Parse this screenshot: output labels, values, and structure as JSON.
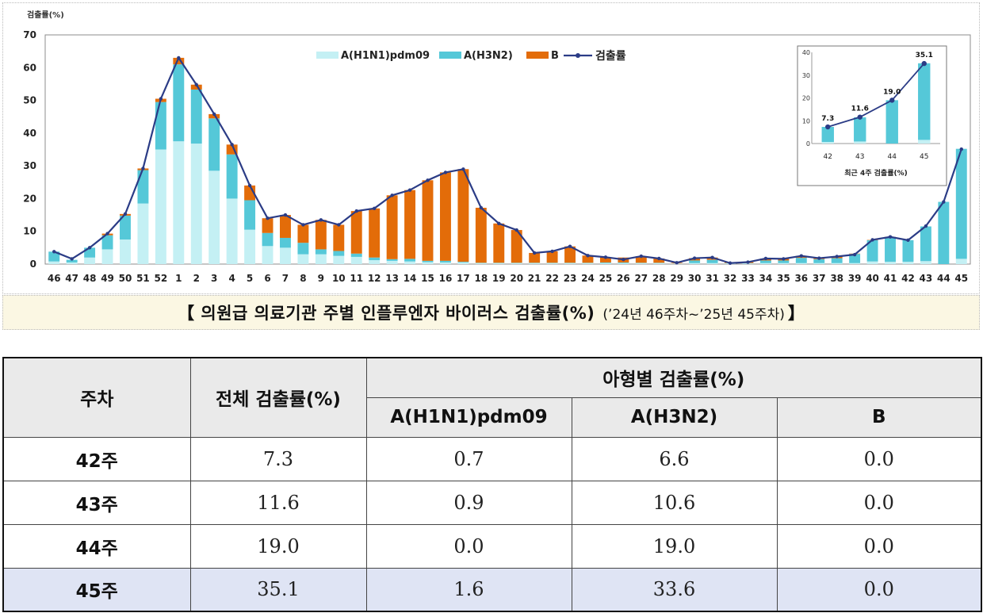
{
  "chart_data": {
    "type": "bar",
    "ylabel": "검출률(%)",
    "ylim": [
      0,
      70
    ],
    "yticks": [
      0,
      10,
      20,
      30,
      40,
      50,
      60,
      70
    ],
    "categories": [
      "46",
      "47",
      "48",
      "49",
      "50",
      "51",
      "52",
      "1",
      "2",
      "3",
      "4",
      "5",
      "6",
      "7",
      "8",
      "9",
      "10",
      "11",
      "12",
      "13",
      "14",
      "15",
      "16",
      "17",
      "18",
      "19",
      "20",
      "21",
      "22",
      "23",
      "24",
      "25",
      "26",
      "27",
      "28",
      "29",
      "30",
      "31",
      "32",
      "33",
      "34",
      "35",
      "36",
      "37",
      "38",
      "39",
      "40",
      "41",
      "42",
      "43",
      "44",
      "45"
    ],
    "series": [
      {
        "name": "A(H1N1)pdm09",
        "color": "#c4f0f4",
        "values": [
          0.8,
          0.5,
          2.0,
          4.5,
          7.5,
          18.5,
          35.0,
          37.5,
          36.8,
          28.5,
          20.0,
          10.5,
          5.5,
          5.0,
          3.0,
          3.0,
          2.5,
          2.2,
          1.2,
          1.0,
          0.8,
          0.6,
          0.5,
          0.5,
          0.3,
          0.3,
          0.3,
          0.3,
          0.3,
          0.3,
          0.3,
          0.3,
          0.3,
          0.3,
          0.3,
          0.2,
          0.3,
          0.3,
          0.2,
          0.2,
          0.3,
          0.3,
          0.3,
          0.3,
          0.3,
          0.3,
          0.8,
          0.7,
          0.7,
          0.9,
          0.0,
          1.6
        ]
      },
      {
        "name": "A(H3N2)",
        "color": "#55c8d8",
        "values": [
          3.0,
          0.8,
          3.0,
          4.3,
          7.3,
          10.2,
          14.5,
          23.5,
          16.5,
          16.0,
          13.5,
          9.0,
          4.0,
          3.0,
          3.5,
          1.5,
          1.5,
          1.0,
          0.8,
          0.5,
          0.8,
          0.4,
          0.5,
          0.2,
          0.1,
          0.1,
          0.1,
          0.1,
          0.1,
          0.1,
          0.1,
          0.2,
          0.2,
          0.1,
          0.1,
          0.0,
          0.8,
          1.0,
          0.1,
          0.1,
          0.8,
          0.8,
          1.6,
          1.2,
          1.5,
          2.8,
          6.5,
          7.5,
          6.6,
          10.6,
          19.0,
          33.6
        ]
      },
      {
        "name": "B",
        "color": "#e36c09",
        "values": [
          0.0,
          0.0,
          0.0,
          0.5,
          0.5,
          0.5,
          1.0,
          2.0,
          1.5,
          1.3,
          3.0,
          4.5,
          4.5,
          7.0,
          5.5,
          9.0,
          8.0,
          13.0,
          15.0,
          19.5,
          21.0,
          24.6,
          27.0,
          28.3,
          16.8,
          12.0,
          10.0,
          3.0,
          3.5,
          5.0,
          2.2,
          1.6,
          1.5,
          2.0,
          1.3,
          0.2,
          0.7,
          0.7,
          0.3,
          0.3,
          0.6,
          0.5,
          0.6,
          0.3,
          0.5,
          0.1,
          0.1,
          0.1,
          0.0,
          0.0,
          0.0,
          0.0
        ]
      },
      {
        "name": "검출률",
        "color": "#2b3c86",
        "values": [
          3.8,
          1.6,
          5.0,
          9.3,
          15.3,
          29.2,
          50.5,
          63.0,
          54.8,
          45.8,
          36.5,
          24.0,
          14.0,
          15.0,
          12.0,
          13.5,
          12.0,
          16.2,
          17.0,
          21.0,
          22.6,
          25.6,
          28.0,
          29.0,
          17.2,
          12.4,
          10.4,
          3.4,
          3.9,
          5.4,
          2.6,
          2.1,
          1.4,
          2.4,
          1.7,
          0.4,
          1.8,
          2.0,
          0.3,
          0.6,
          1.7,
          1.6,
          2.5,
          1.8,
          2.3,
          2.9,
          7.4,
          8.3,
          7.3,
          11.6,
          19.0,
          35.1
        ]
      }
    ],
    "inset": {
      "title": "최근 4주 검출률(%)",
      "categories": [
        "42",
        "43",
        "44",
        "45"
      ],
      "ylim": [
        0,
        40
      ],
      "yticks": [
        0,
        10,
        20,
        30,
        40
      ],
      "total": [
        7.3,
        11.6,
        19.0,
        35.1
      ],
      "total_labels": [
        "7.3",
        "11.6",
        "19.0",
        "35.1"
      ],
      "h1n1": [
        0.7,
        0.9,
        0.0,
        1.6
      ],
      "h3n2": [
        6.6,
        10.6,
        19.0,
        33.6
      ]
    }
  },
  "caption": {
    "main": "【 의원급 의료기관 주별 인플루엔자 바이러스 검출률(%)",
    "sub": "(’24년 46주차~’25년 45주차)",
    "close": "】"
  },
  "table": {
    "headers": {
      "week": "주차",
      "total": "전체 검출률(%)",
      "by_subtype": "아형별 검출률(%)",
      "h1n1": "A(H1N1)pdm09",
      "h3n2": "A(H3N2)",
      "b": "B"
    },
    "rows": [
      {
        "week": "42주",
        "total": "7.3",
        "h1n1": "0.7",
        "h3n2": "6.6",
        "b": "0.0"
      },
      {
        "week": "43주",
        "total": "11.6",
        "h1n1": "0.9",
        "h3n2": "10.6",
        "b": "0.0"
      },
      {
        "week": "44주",
        "total": "19.0",
        "h1n1": "0.0",
        "h3n2": "19.0",
        "b": "0.0"
      },
      {
        "week": "45주",
        "total": "35.1",
        "h1n1": "1.6",
        "h3n2": "33.6",
        "b": "0.0"
      }
    ]
  }
}
